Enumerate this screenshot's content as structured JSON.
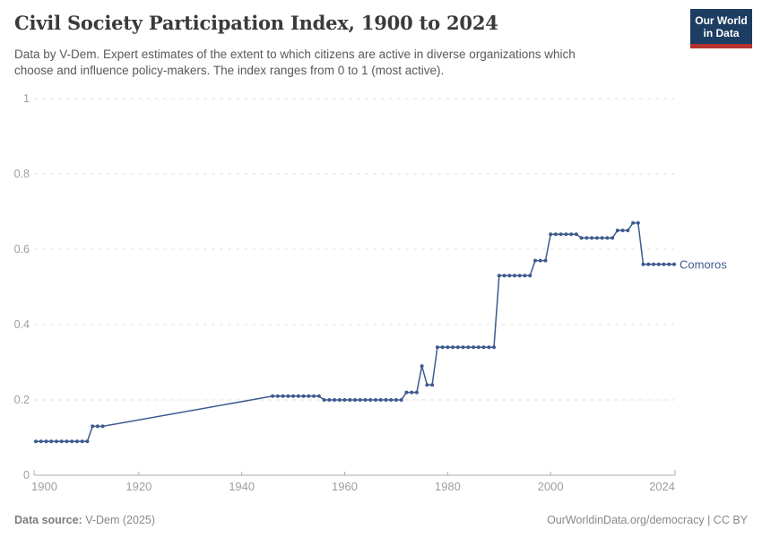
{
  "header": {
    "title": "Civil Society Participation Index, 1900 to 2024",
    "subtitle_line1": "Data by V-Dem. Expert estimates of the extent to which citizens are active in diverse organizations which",
    "subtitle_line2": "choose and influence policy-makers. The index ranges from 0 to 1 (most active).",
    "logo": {
      "line1": "Our World",
      "line2": "in Data",
      "bg_color": "#1d3d63",
      "bar_color": "#b5322d"
    }
  },
  "footer": {
    "source_label": "Data source:",
    "source_value": "V-Dem (2025)",
    "credit": "OurWorldinData.org/democracy | CC BY"
  },
  "chart_data": {
    "type": "line",
    "title": "Civil Society Participation Index, 1900 to 2024",
    "series_name": "Comoros",
    "line_color": "#3d5a8f",
    "grid": true,
    "legend_position": "end-of-line-label",
    "xlim": [
      1900,
      2024
    ],
    "ylim": [
      0,
      1
    ],
    "x_ticks": [
      1900,
      1920,
      1940,
      1960,
      1980,
      2000,
      2024
    ],
    "y_ticks": [
      0,
      0.2,
      0.4,
      0.6,
      0.8,
      1
    ],
    "data_gap_note": "no data 1914-1945, connected by straight line",
    "points": [
      [
        1900,
        0.09
      ],
      [
        1901,
        0.09
      ],
      [
        1902,
        0.09
      ],
      [
        1903,
        0.09
      ],
      [
        1904,
        0.09
      ],
      [
        1905,
        0.09
      ],
      [
        1906,
        0.09
      ],
      [
        1907,
        0.09
      ],
      [
        1908,
        0.09
      ],
      [
        1909,
        0.09
      ],
      [
        1910,
        0.09
      ],
      [
        1911,
        0.13
      ],
      [
        1912,
        0.13
      ],
      [
        1913,
        0.13
      ],
      [
        1946,
        0.21
      ],
      [
        1947,
        0.21
      ],
      [
        1948,
        0.21
      ],
      [
        1949,
        0.21
      ],
      [
        1950,
        0.21
      ],
      [
        1951,
        0.21
      ],
      [
        1952,
        0.21
      ],
      [
        1953,
        0.21
      ],
      [
        1954,
        0.21
      ],
      [
        1955,
        0.21
      ],
      [
        1956,
        0.2
      ],
      [
        1957,
        0.2
      ],
      [
        1958,
        0.2
      ],
      [
        1959,
        0.2
      ],
      [
        1960,
        0.2
      ],
      [
        1961,
        0.2
      ],
      [
        1962,
        0.2
      ],
      [
        1963,
        0.2
      ],
      [
        1964,
        0.2
      ],
      [
        1965,
        0.2
      ],
      [
        1966,
        0.2
      ],
      [
        1967,
        0.2
      ],
      [
        1968,
        0.2
      ],
      [
        1969,
        0.2
      ],
      [
        1970,
        0.2
      ],
      [
        1971,
        0.2
      ],
      [
        1972,
        0.22
      ],
      [
        1973,
        0.22
      ],
      [
        1974,
        0.22
      ],
      [
        1975,
        0.29
      ],
      [
        1976,
        0.24
      ],
      [
        1977,
        0.24
      ],
      [
        1978,
        0.34
      ],
      [
        1979,
        0.34
      ],
      [
        1980,
        0.34
      ],
      [
        1981,
        0.34
      ],
      [
        1982,
        0.34
      ],
      [
        1983,
        0.34
      ],
      [
        1984,
        0.34
      ],
      [
        1985,
        0.34
      ],
      [
        1986,
        0.34
      ],
      [
        1987,
        0.34
      ],
      [
        1988,
        0.34
      ],
      [
        1989,
        0.34
      ],
      [
        1990,
        0.53
      ],
      [
        1991,
        0.53
      ],
      [
        1992,
        0.53
      ],
      [
        1993,
        0.53
      ],
      [
        1994,
        0.53
      ],
      [
        1995,
        0.53
      ],
      [
        1996,
        0.53
      ],
      [
        1997,
        0.57
      ],
      [
        1998,
        0.57
      ],
      [
        1999,
        0.57
      ],
      [
        2000,
        0.64
      ],
      [
        2001,
        0.64
      ],
      [
        2002,
        0.64
      ],
      [
        2003,
        0.64
      ],
      [
        2004,
        0.64
      ],
      [
        2005,
        0.64
      ],
      [
        2006,
        0.63
      ],
      [
        2007,
        0.63
      ],
      [
        2008,
        0.63
      ],
      [
        2009,
        0.63
      ],
      [
        2010,
        0.63
      ],
      [
        2011,
        0.63
      ],
      [
        2012,
        0.63
      ],
      [
        2013,
        0.65
      ],
      [
        2014,
        0.65
      ],
      [
        2015,
        0.65
      ],
      [
        2016,
        0.67
      ],
      [
        2017,
        0.67
      ],
      [
        2018,
        0.56
      ],
      [
        2019,
        0.56
      ],
      [
        2020,
        0.56
      ],
      [
        2021,
        0.56
      ],
      [
        2022,
        0.56
      ],
      [
        2023,
        0.56
      ],
      [
        2024,
        0.56
      ]
    ],
    "colors": {
      "grid_line": "#e2e2e2",
      "axis_line": "#adadad",
      "tick_label": "#9e9e9e"
    }
  }
}
